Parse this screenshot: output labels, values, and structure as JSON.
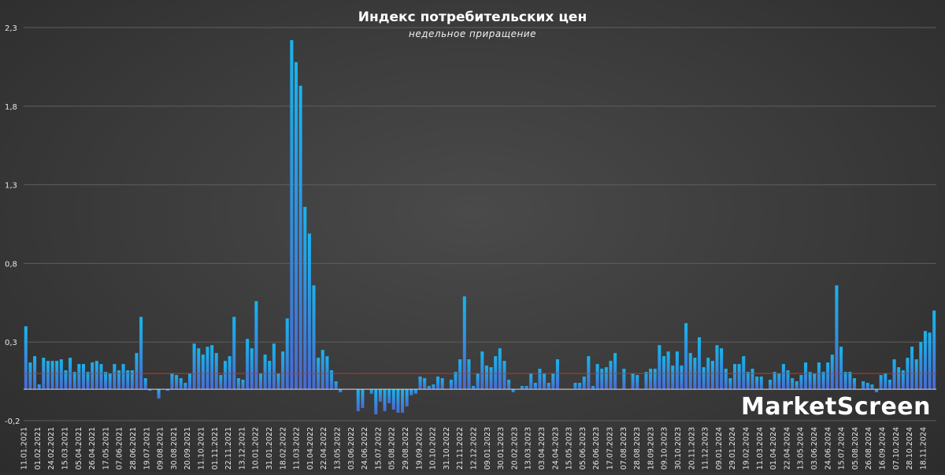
{
  "chart_data": {
    "type": "bar",
    "title": "Индекс потребительских цен",
    "subtitle": "недельное приращение",
    "ylim": [
      -0.2,
      2.3
    ],
    "y_ticks": [
      "-0,2",
      "0,3",
      "0,8",
      "1,3",
      "1,8",
      "2,3"
    ],
    "y_tick_values": [
      -0.2,
      0.3,
      0.8,
      1.3,
      1.8,
      2.3
    ],
    "grid": true,
    "reference_line": {
      "value": 0.1,
      "color": "#c0392b"
    },
    "x_tick_labels": [
      "11.01.2021",
      "01.02.2021",
      "24.02.2021",
      "15.03.2021",
      "05.04.2021",
      "26.04.2021",
      "17.05.2021",
      "07.06.2021",
      "28.06.2021",
      "19.07.2021",
      "09.08.2021",
      "30.08.2021",
      "20.09.2021",
      "11.10.2021",
      "01.11.2021",
      "22.11.2021",
      "13.12.2021",
      "10.01.2022",
      "31.01.2022",
      "18.02.2022",
      "11.03.2022",
      "01.04.2022",
      "22.04.2022",
      "13.05.2022",
      "03.06.2022",
      "24.06.2022",
      "15.07.2022",
      "05.08.2022",
      "29.08.2022",
      "19.09.2022",
      "10.10.2022",
      "31.10.2022",
      "21.11.2022",
      "12.12.2022",
      "09.01.2023",
      "30.01.2023",
      "20.02.2023",
      "13.03.2023",
      "03.04.2023",
      "24.04.2023",
      "15.05.2023",
      "05.06.2023",
      "26.06.2023",
      "17.07.2023",
      "07.08.2023",
      "28.08.2023",
      "18.09.2023",
      "09.10.2023",
      "30.10.2023",
      "20.11.2023",
      "11.12.2023",
      "09.01.2024",
      "29.01.2024",
      "19.02.2024",
      "11.03.2024",
      "01.04.2024",
      "22.04.2024",
      "13.05.2024",
      "03.06.2024",
      "24.06.2024",
      "15.07.2024",
      "05.08.2024",
      "26.08.2024",
      "16.09.2024",
      "07.10.2024",
      "28.10.2024",
      "18.11.2024"
    ],
    "values": [
      0.4,
      0.17,
      0.21,
      0.03,
      0.2,
      0.18,
      0.18,
      0.18,
      0.19,
      0.12,
      0.2,
      0.11,
      0.16,
      0.16,
      0.11,
      0.17,
      0.18,
      0.16,
      0.11,
      0.1,
      0.16,
      0.12,
      0.16,
      0.12,
      0.12,
      0.23,
      0.46,
      0.07,
      -0.01,
      0.0,
      -0.06,
      0.0,
      -0.01,
      0.1,
      0.09,
      0.07,
      0.04,
      0.1,
      0.29,
      0.26,
      0.22,
      0.27,
      0.28,
      0.23,
      0.09,
      0.18,
      0.21,
      0.46,
      0.07,
      0.06,
      0.32,
      0.26,
      0.56,
      0.1,
      0.22,
      0.18,
      0.29,
      0.1,
      0.24,
      0.45,
      2.22,
      2.08,
      1.93,
      1.16,
      0.99,
      0.66,
      0.2,
      0.25,
      0.21,
      0.12,
      0.05,
      -0.02,
      0.0,
      0.0,
      0.0,
      -0.14,
      -0.12,
      -0.0,
      -0.03,
      -0.16,
      -0.08,
      -0.14,
      -0.09,
      -0.13,
      -0.15,
      -0.15,
      -0.11,
      -0.04,
      -0.03,
      0.08,
      0.07,
      0.02,
      0.03,
      0.08,
      0.07,
      0.0,
      0.06,
      0.11,
      0.19,
      0.59,
      0.19,
      0.02,
      0.1,
      0.24,
      0.15,
      0.14,
      0.21,
      0.26,
      0.18,
      0.06,
      -0.02,
      0.0,
      0.02,
      0.02,
      0.1,
      0.04,
      0.13,
      0.1,
      0.04,
      0.1,
      0.19,
      0.0,
      0.0,
      0.0,
      0.04,
      0.04,
      0.08,
      0.21,
      0.02,
      0.16,
      0.13,
      0.14,
      0.18,
      0.23,
      0.0,
      0.13,
      0.0,
      0.1,
      0.09,
      0.0,
      0.11,
      0.13,
      0.13,
      0.28,
      0.21,
      0.24,
      0.15,
      0.24,
      0.15,
      0.42,
      0.23,
      0.2,
      0.33,
      0.14,
      0.2,
      0.18,
      0.28,
      0.26,
      0.13,
      0.07,
      0.16,
      0.16,
      0.21,
      0.11,
      0.13,
      0.08,
      0.08,
      0.0,
      0.06,
      0.11,
      0.1,
      0.16,
      0.12,
      0.07,
      0.05,
      0.09,
      0.17,
      0.11,
      0.1,
      0.17,
      0.11,
      0.17,
      0.22,
      0.66,
      0.27,
      0.11,
      0.11,
      0.07,
      0.0,
      0.05,
      0.04,
      0.03,
      -0.02,
      0.09,
      0.1,
      0.06,
      0.19,
      0.14,
      0.12,
      0.2,
      0.27,
      0.19,
      0.3,
      0.37,
      0.36,
      0.5
    ],
    "colors": {
      "bar_top": "#18b4ee",
      "bar_bottom": "#4a6ad0",
      "background": "#3a3a3a"
    }
  },
  "brand": {
    "text": "MarketScreen"
  }
}
